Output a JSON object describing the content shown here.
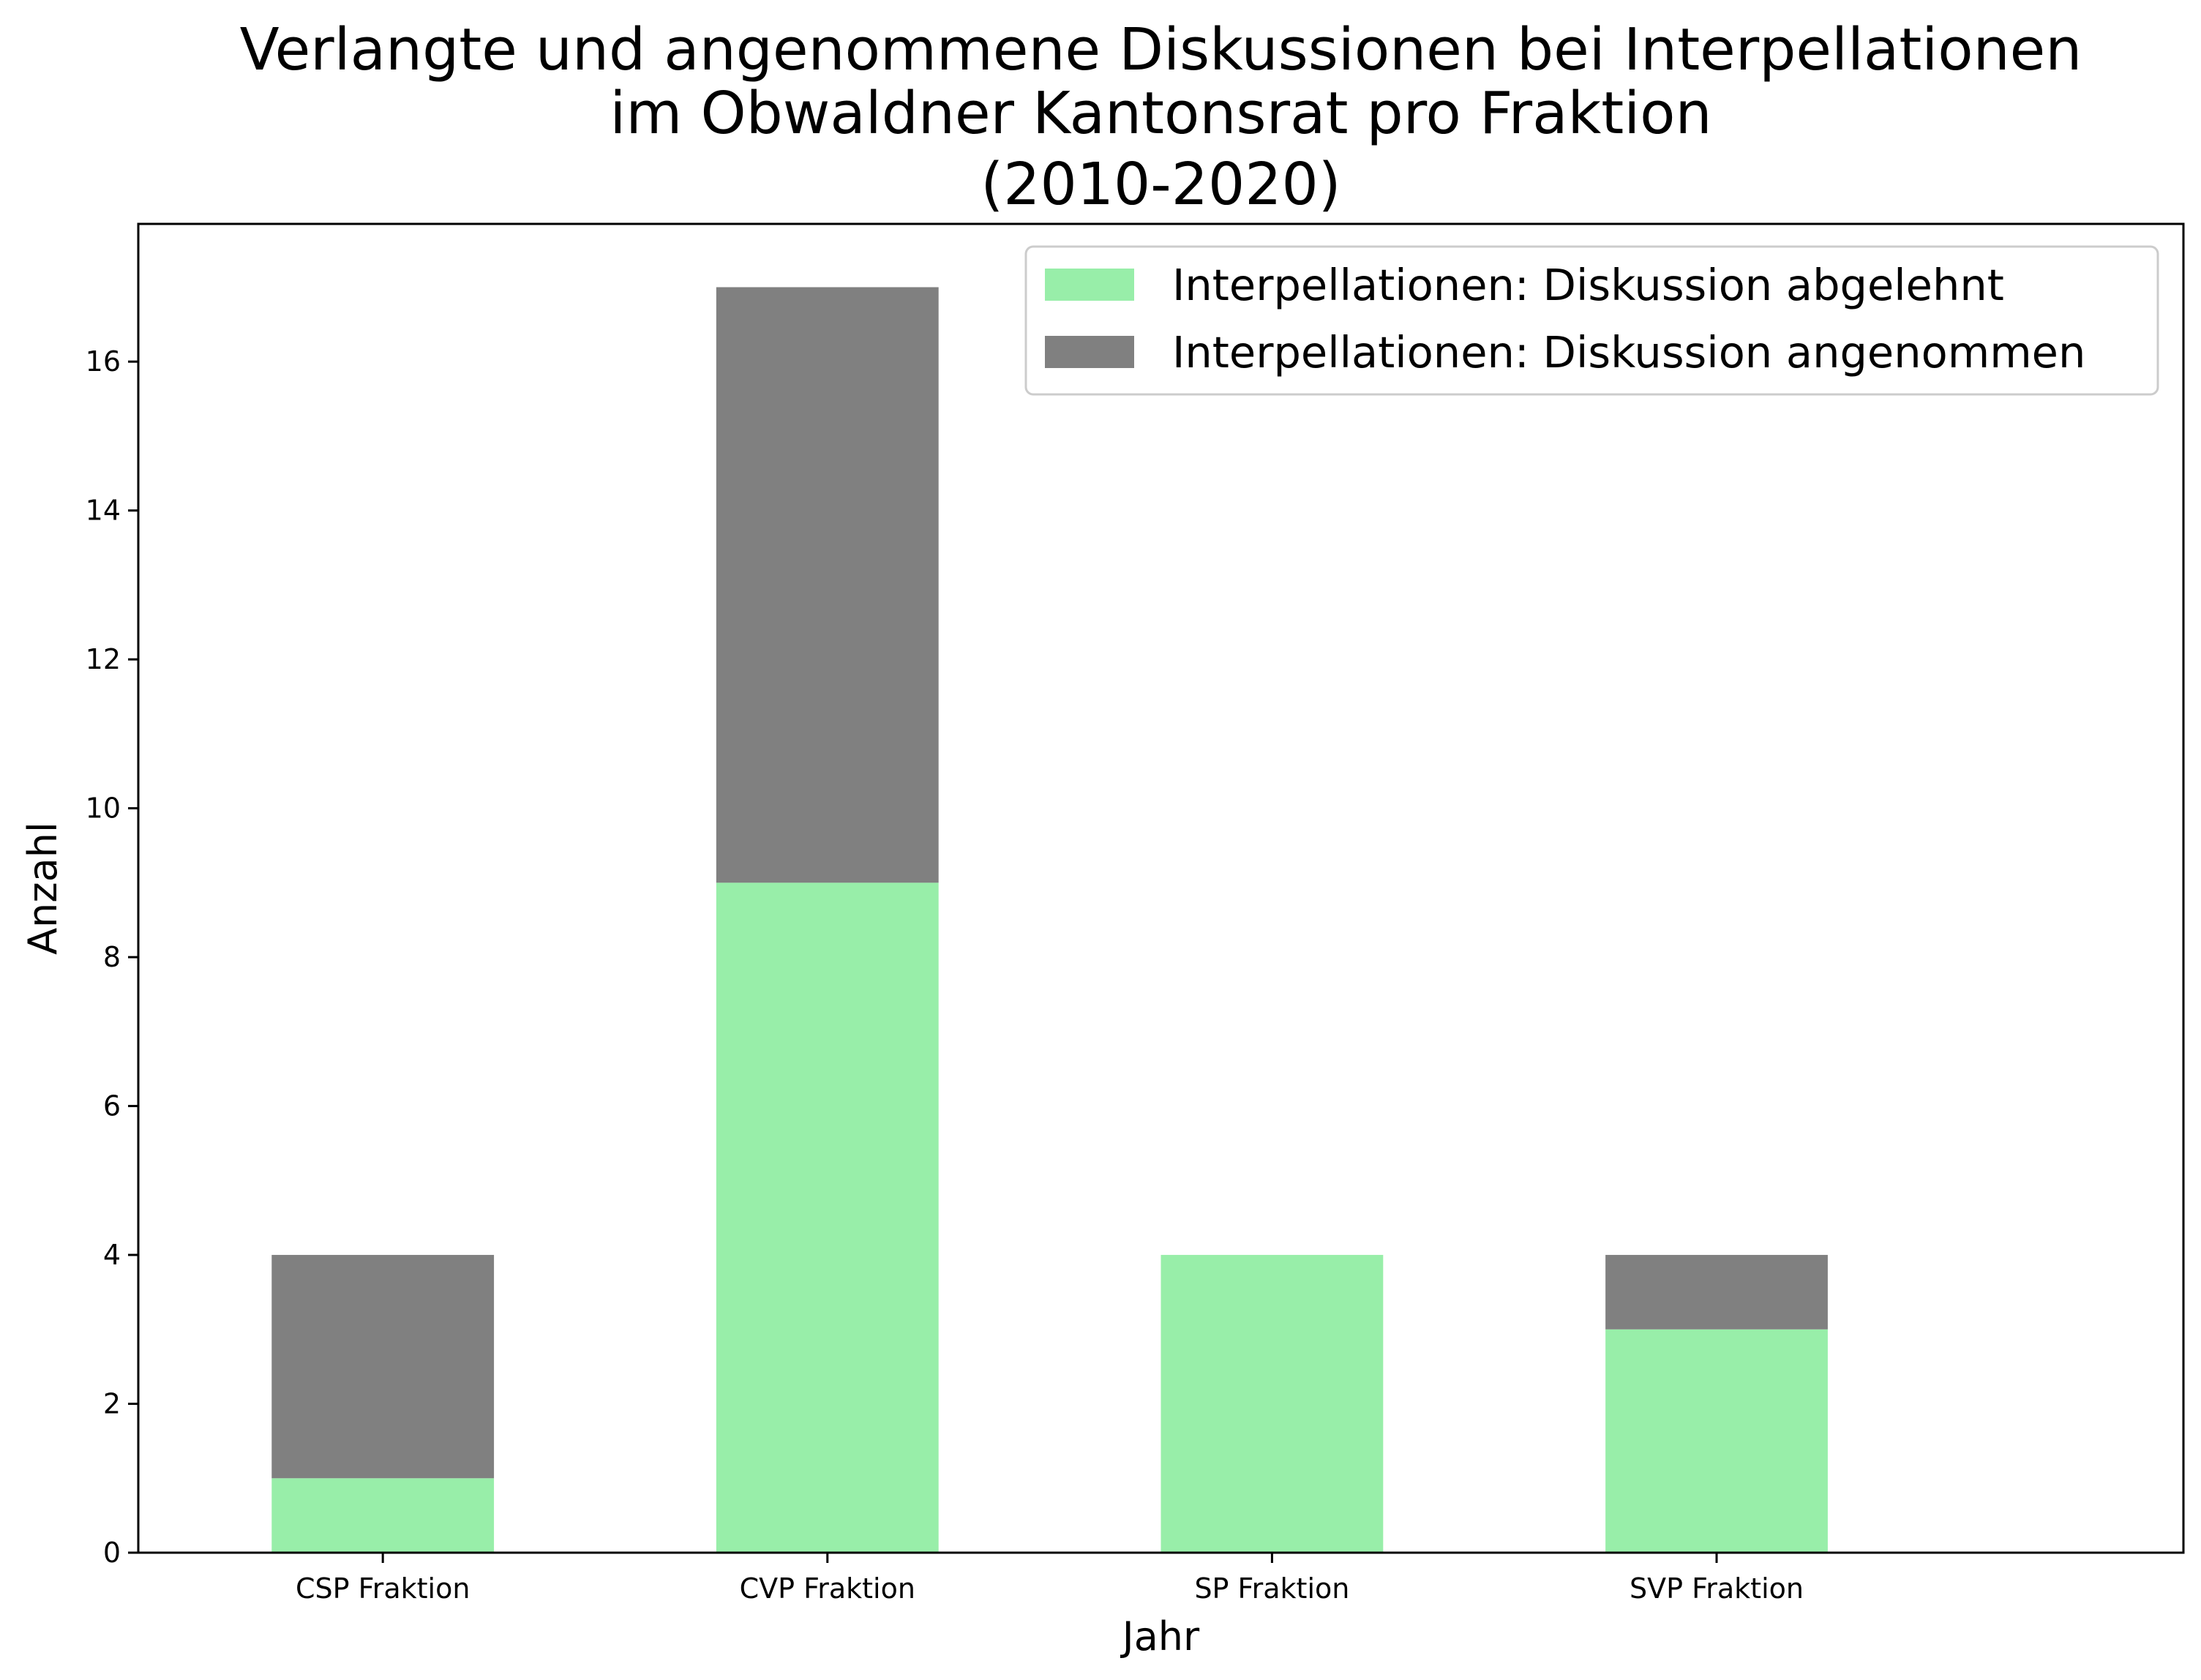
{
  "chart_data": {
    "type": "bar",
    "stacked": true,
    "title_lines": [
      "Verlangte und angenommene Diskussionen bei Interpellationen",
      "im Obwaldner Kantonsrat pro Fraktion",
      "(2010-2020)"
    ],
    "xlabel": "Jahr",
    "ylabel": "Anzahl",
    "categories": [
      "CSP Fraktion",
      "CVP Fraktion",
      "SP Fraktion",
      "SVP Fraktion"
    ],
    "series": [
      {
        "name": "Interpellationen: Diskussion abgelehnt",
        "color": "#98eea9",
        "values": [
          1,
          9,
          4,
          3
        ]
      },
      {
        "name": "Interpellationen: Diskussion angenommen",
        "color": "#808080",
        "values": [
          3,
          8,
          0,
          1
        ]
      }
    ],
    "ylim": [
      0,
      17.85
    ],
    "yticks": [
      0,
      2,
      4,
      6,
      8,
      10,
      12,
      14,
      16
    ],
    "grid": false,
    "legend_position": "top-right"
  }
}
